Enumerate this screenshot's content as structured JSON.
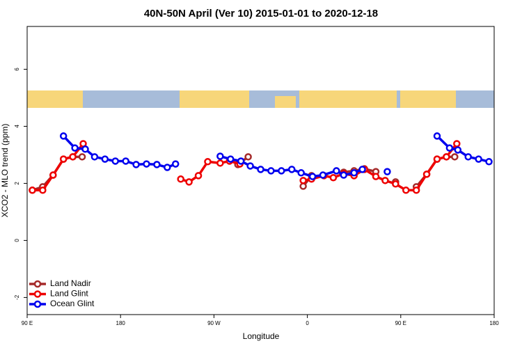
{
  "chart_data": {
    "type": "line",
    "title": "40N-50N April (Ver 10)   2015-01-01 to 2020-12-18",
    "x_label": "Longitude",
    "y_label": "XCO2 - MLO trend (ppm)",
    "xlim": [
      90,
      540
    ],
    "ylim": [
      -2.6,
      7.5
    ],
    "xticks": [
      {
        "value": 90,
        "label": "90 E"
      },
      180,
      {
        "value": 270,
        "label": "90 W"
      },
      {
        "value": 360,
        "label": "0"
      },
      {
        "value": 450,
        "label": "90 E"
      },
      {
        "value": 540,
        "label": "180"
      }
    ],
    "yticks": [
      -2,
      0,
      2,
      4,
      6
    ],
    "legend": "bottom-left",
    "series": [
      {
        "name": "Land Nadir",
        "color": "#a52a2a",
        "x": [
          95,
          105,
          115,
          125,
          134,
          143,
          null,
          293,
          303,
          null,
          356,
          364,
          null,
          395,
          405,
          415,
          426,
          null,
          445,
          null,
          465,
          475,
          485,
          494,
          502
        ],
        "values": [
          1.76,
          1.88,
          2.29,
          2.85,
          2.93,
          2.93,
          null,
          2.66,
          2.93,
          null,
          1.9,
          2.27,
          null,
          2.39,
          2.44,
          2.51,
          2.41,
          null,
          2.05,
          null,
          1.88,
          2.32,
          2.85,
          2.93,
          2.93
        ]
      },
      {
        "name": "Land Glint",
        "color": "#ee0000",
        "x": [
          95,
          105,
          115,
          125,
          134,
          144,
          null,
          238,
          246,
          255,
          264,
          276,
          285,
          295,
          null,
          356,
          364,
          376,
          385,
          395,
          405,
          415,
          426,
          435,
          445,
          455,
          465,
          475,
          485,
          494,
          504
        ],
        "values": [
          1.76,
          1.76,
          2.29,
          2.85,
          2.93,
          3.39,
          null,
          2.15,
          2.05,
          2.27,
          2.76,
          2.71,
          2.78,
          2.68,
          null,
          2.1,
          2.15,
          2.27,
          2.2,
          2.34,
          2.27,
          2.49,
          2.24,
          2.1,
          1.98,
          1.76,
          1.76,
          2.32,
          2.85,
          2.93,
          3.39
        ]
      },
      {
        "name": "Ocean Glint",
        "color": "#0000ee",
        "x": [
          125,
          136,
          146,
          155,
          165,
          175,
          185,
          195,
          205,
          215,
          225,
          233,
          null,
          276,
          286,
          296,
          305,
          315,
          325,
          335,
          345,
          354,
          365,
          375,
          388,
          395,
          405,
          413,
          null,
          437,
          null,
          485,
          497,
          505,
          515,
          525,
          535
        ],
        "values": [
          3.66,
          3.24,
          3.2,
          2.93,
          2.85,
          2.78,
          2.78,
          2.66,
          2.68,
          2.66,
          2.56,
          2.68,
          null,
          2.95,
          2.85,
          2.78,
          2.61,
          2.49,
          2.44,
          2.44,
          2.49,
          2.37,
          2.24,
          2.29,
          2.44,
          2.29,
          2.37,
          2.49,
          null,
          2.41,
          null,
          3.66,
          3.24,
          3.17,
          2.93,
          2.85,
          2.76
        ]
      }
    ]
  }
}
